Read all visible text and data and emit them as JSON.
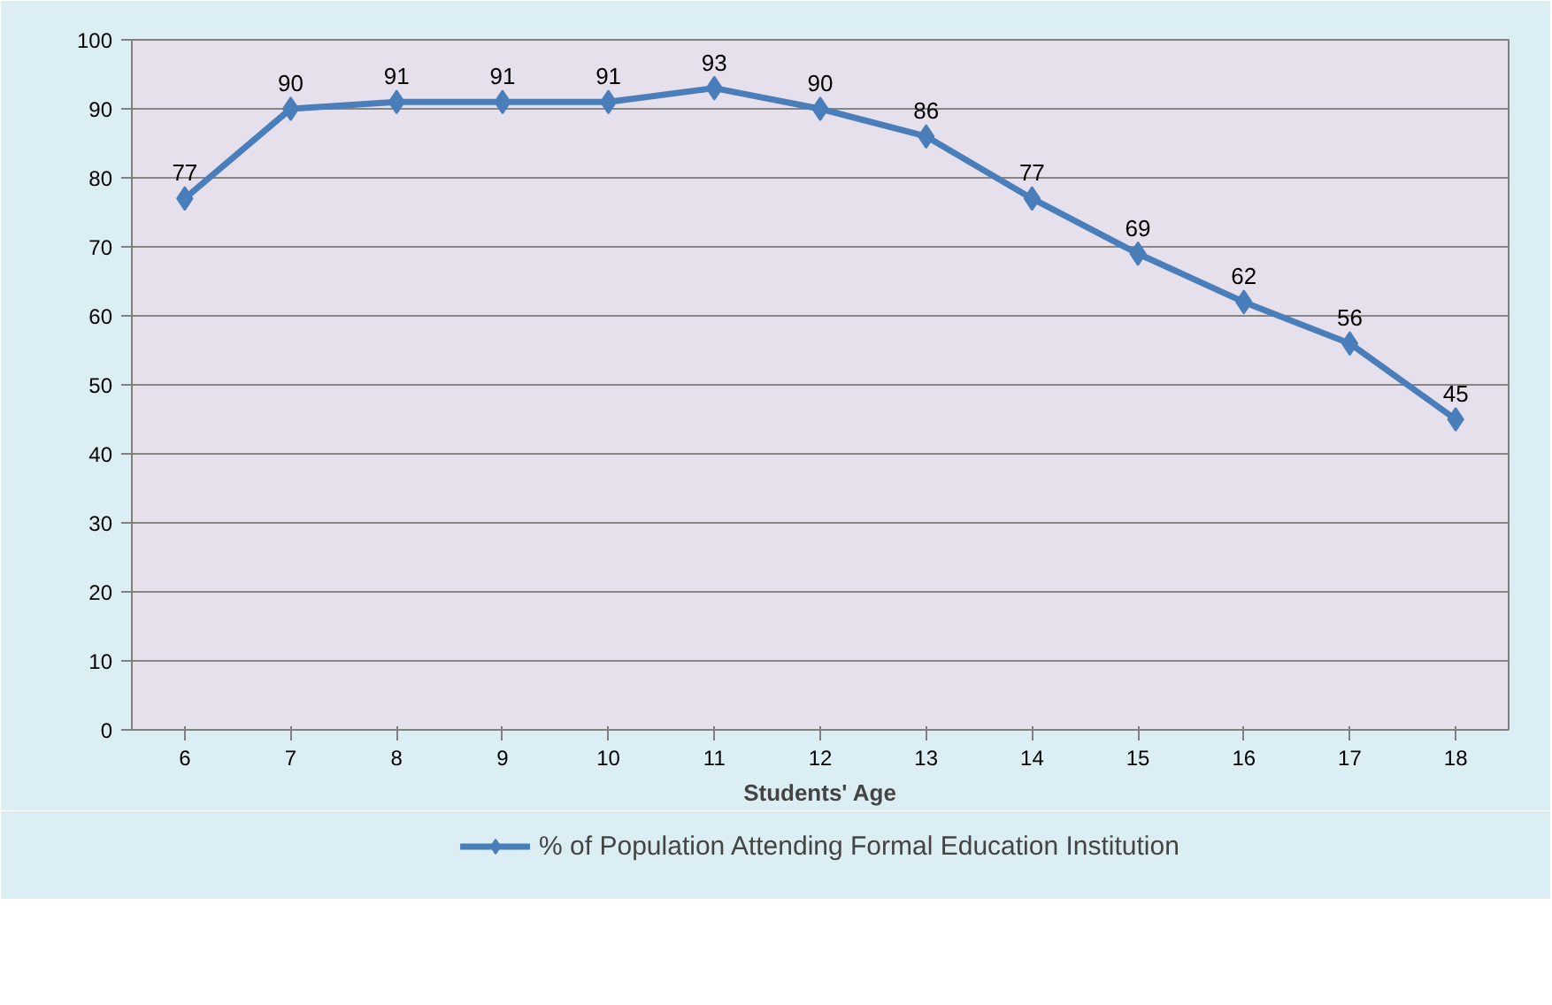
{
  "chart_data": {
    "type": "line",
    "xlabel": "Students' Age",
    "categories": [
      "6",
      "7",
      "8",
      "9",
      "10",
      "11",
      "12",
      "13",
      "14",
      "15",
      "16",
      "17",
      "18"
    ],
    "series": [
      {
        "name": "% of Population Attending Formal Education Institution",
        "color": "#4a7ebb",
        "values": [
          77,
          90,
          91,
          91,
          91,
          93,
          90,
          86,
          77,
          69,
          62,
          56,
          45
        ]
      }
    ],
    "ylim": [
      0,
      100
    ],
    "yticks": [
      0,
      10,
      20,
      30,
      40,
      50,
      60,
      70,
      80,
      90,
      100
    ],
    "grid": "y",
    "legend": "bottom",
    "marker": "diamond",
    "line_style": "solid",
    "data_labels": true
  }
}
